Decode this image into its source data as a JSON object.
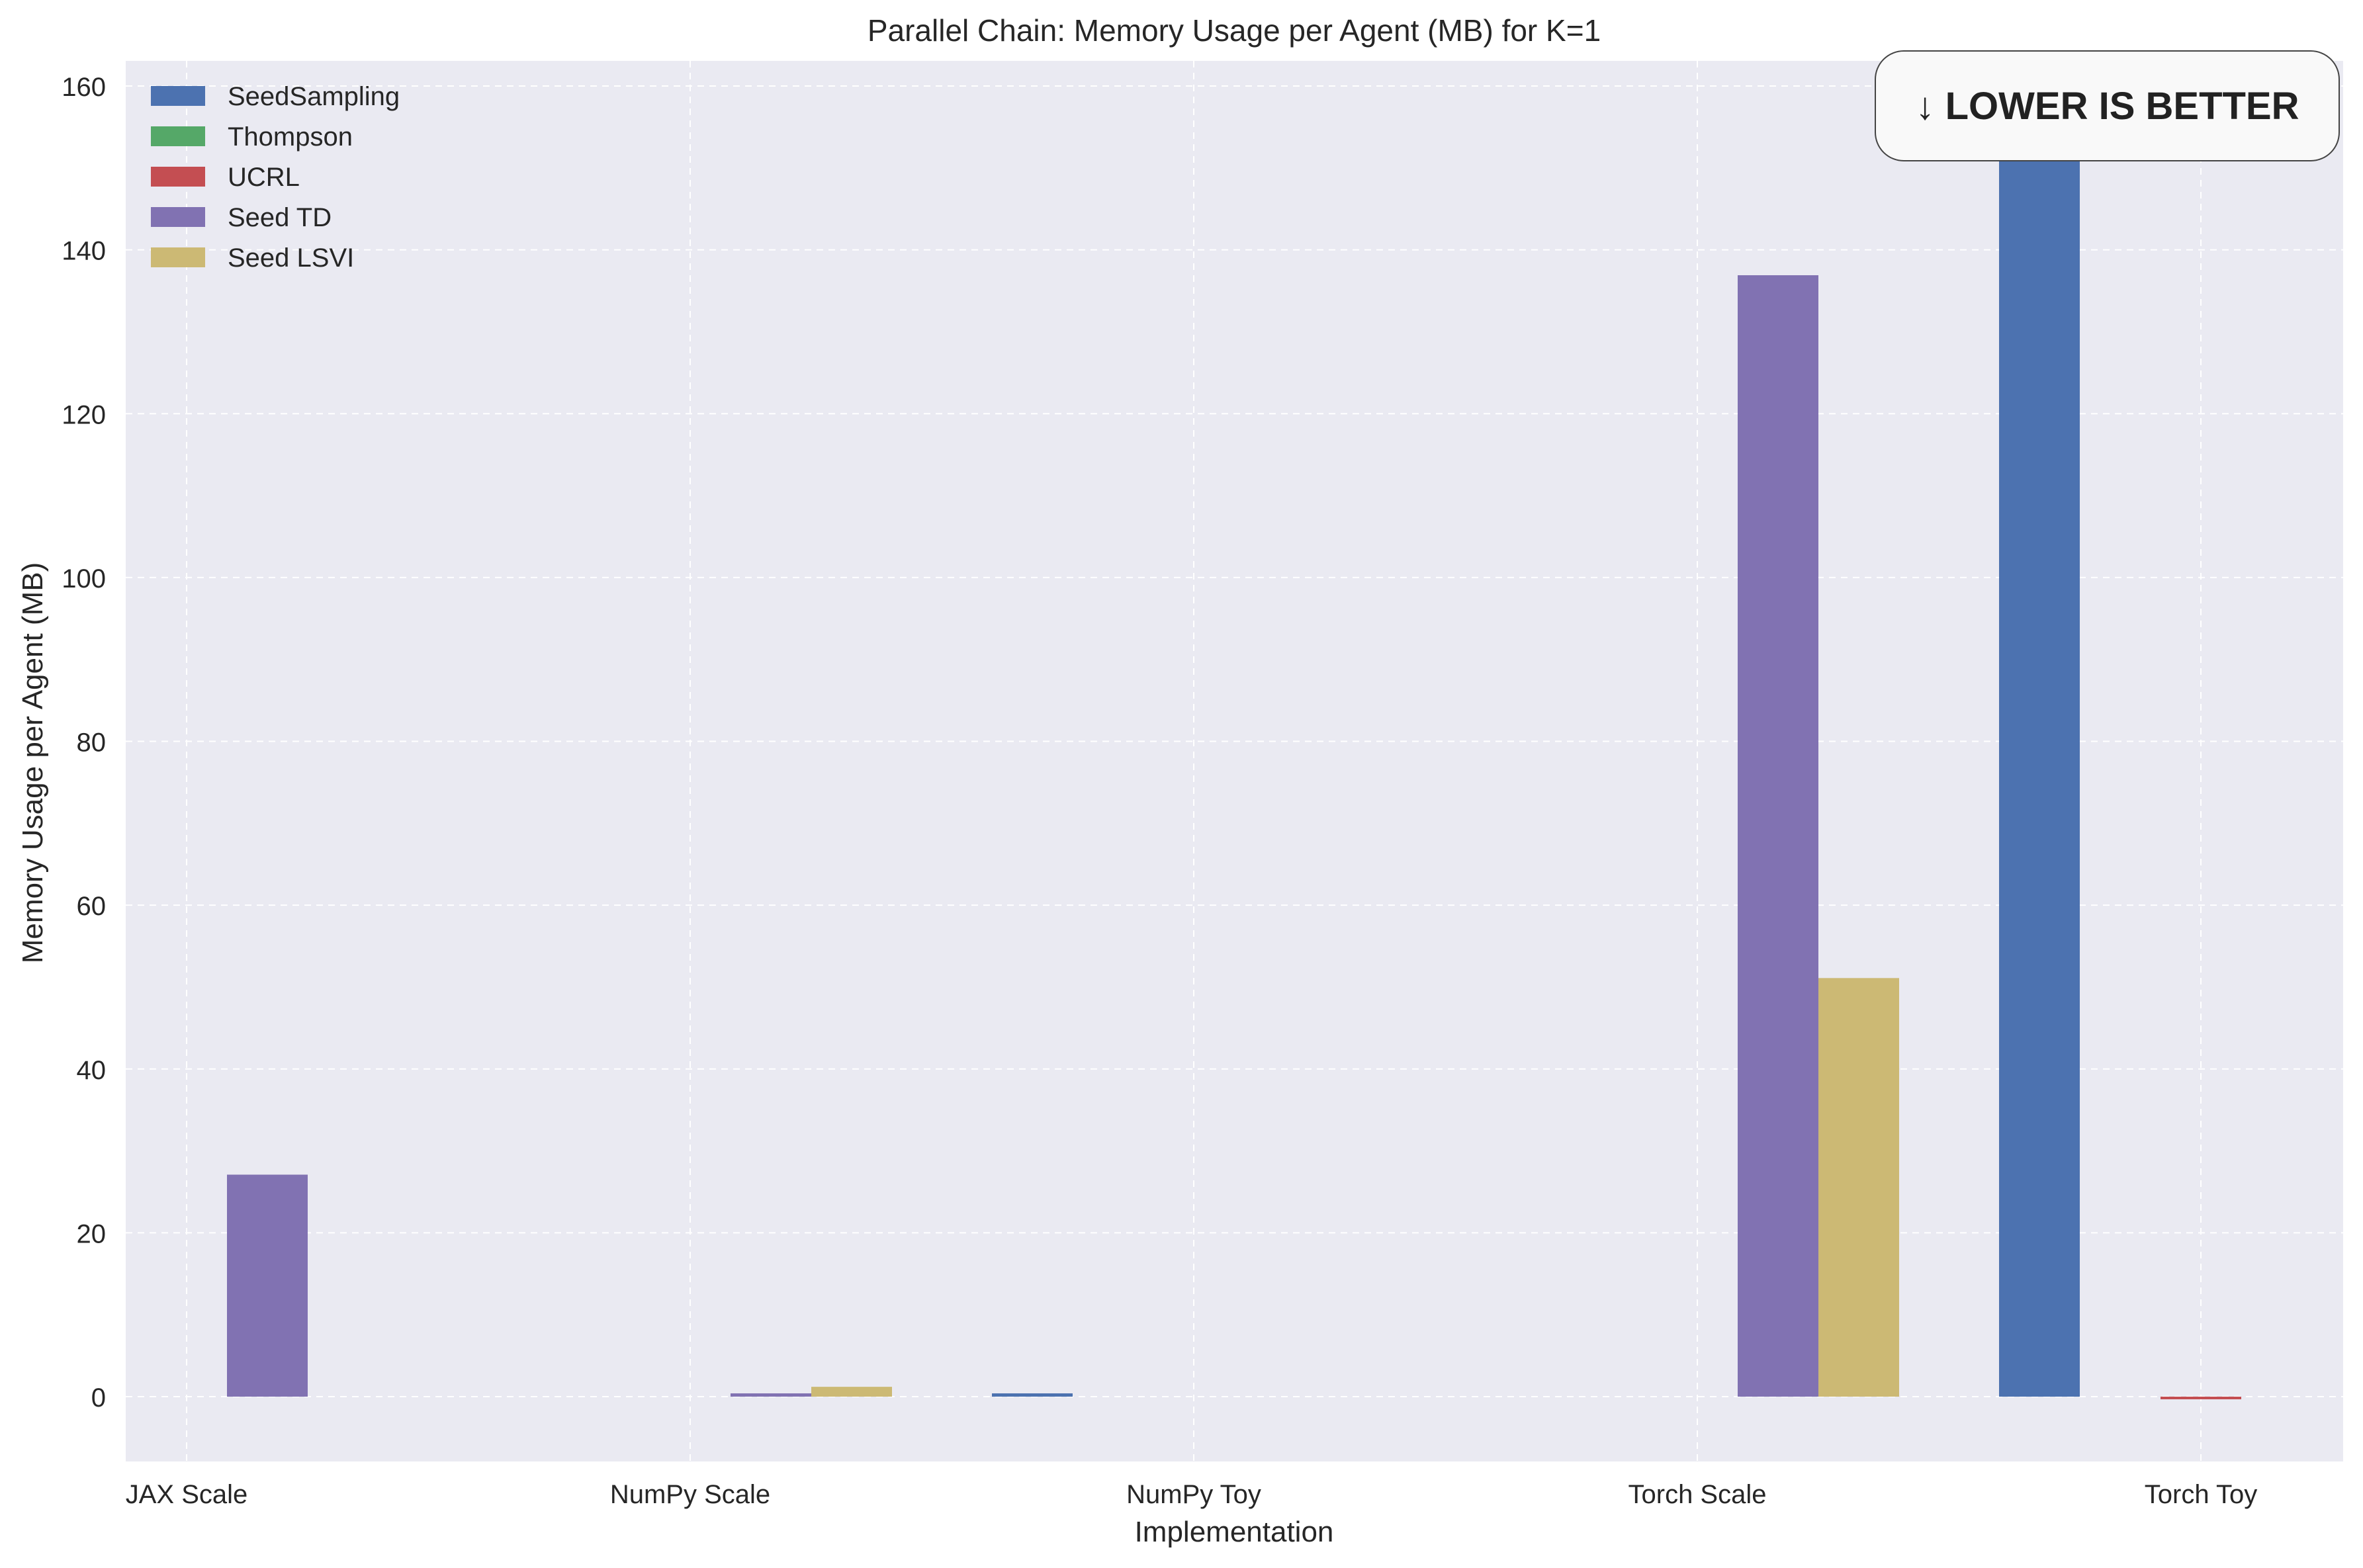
{
  "chart_data": {
    "type": "bar",
    "title": "Parallel Chain: Memory Usage per Agent (MB) for K=1",
    "xlabel": "Implementation",
    "ylabel": "Memory Usage per Agent (MB)",
    "categories": [
      "JAX Scale",
      "NumPy Scale",
      "NumPy Toy",
      "Torch Scale",
      "Torch Toy"
    ],
    "ylim": [
      -8,
      162
    ],
    "yticks": [
      0,
      20,
      40,
      60,
      80,
      100,
      120,
      140,
      160
    ],
    "grid": true,
    "legend_position": "top-left",
    "series": [
      {
        "name": "SeedSampling",
        "color": "#4c72b0",
        "values": [
          null,
          null,
          0.4,
          null,
          155.5
        ]
      },
      {
        "name": "Thompson",
        "color": "#55a868",
        "values": [
          null,
          null,
          null,
          null,
          null
        ]
      },
      {
        "name": "UCRL",
        "color": "#c44e52",
        "values": [
          null,
          null,
          null,
          null,
          -0.2
        ]
      },
      {
        "name": "Seed TD",
        "color": "#8172b2",
        "values": [
          27.1,
          0.4,
          null,
          136.9,
          null
        ]
      },
      {
        "name": "Seed LSVI",
        "color": "#ccb974",
        "values": [
          null,
          1.2,
          null,
          51.1,
          null
        ]
      }
    ],
    "annotation": "↓ LOWER IS BETTER"
  }
}
